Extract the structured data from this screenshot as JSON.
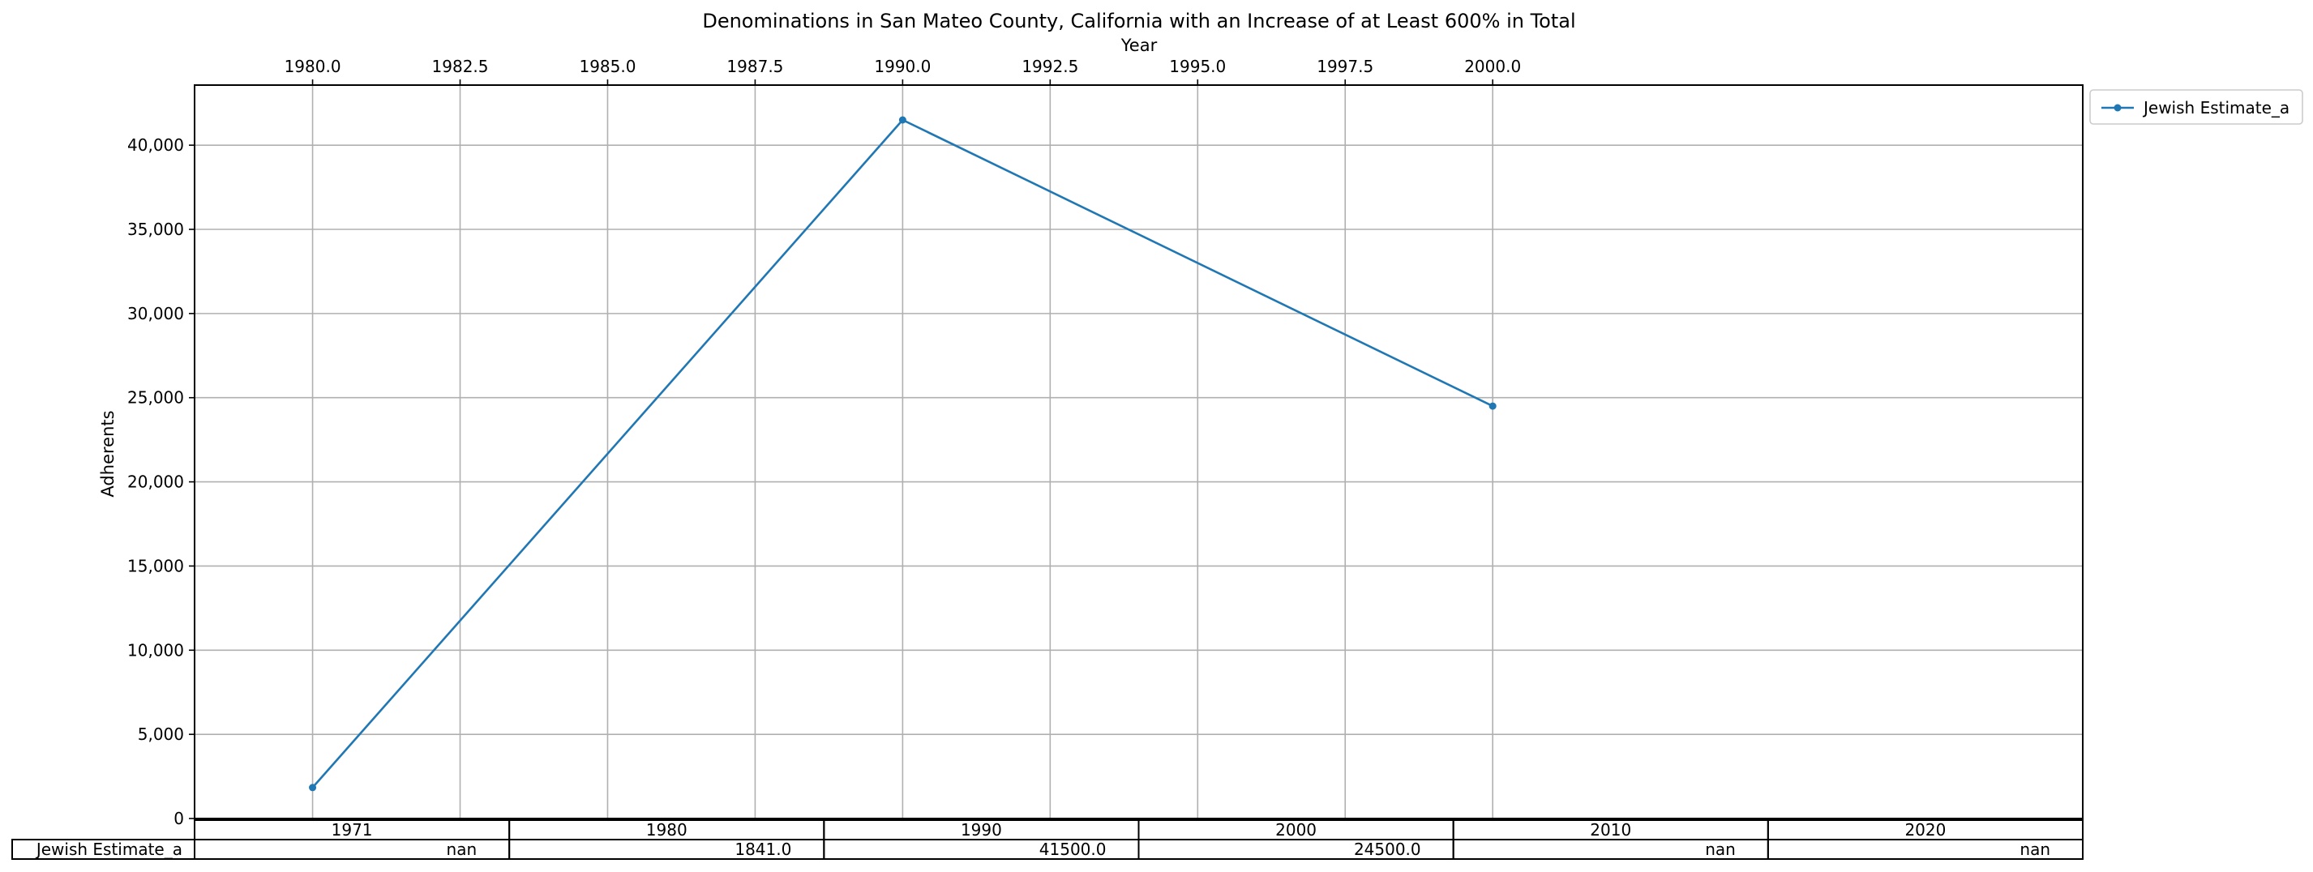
{
  "chart_data": {
    "type": "line",
    "title": "Denominations in San Mateo County, California with an Increase of at Least 600% in Total",
    "xlabel": "Year",
    "ylabel": "Adherents",
    "xlim": [
      1978,
      2010
    ],
    "ylim": [
      0,
      43570
    ],
    "x_ticks": [
      "1980.0",
      "1982.5",
      "1985.0",
      "1987.5",
      "1990.0",
      "1992.5",
      "1995.0",
      "1997.5",
      "2000.0"
    ],
    "y_ticks": [
      "0",
      "5,000",
      "10,000",
      "15,000",
      "20,000",
      "25,000",
      "30,000",
      "35,000",
      "40,000"
    ],
    "grid": true,
    "legend_position": "upper-right-outside",
    "series": [
      {
        "name": "Jewish Estimate_a",
        "color": "#1f77b4",
        "x": [
          1980,
          1990,
          2000
        ],
        "y": [
          1841,
          41500,
          24500
        ]
      }
    ],
    "table": {
      "columns": [
        "1971",
        "1980",
        "1990",
        "2000",
        "2010",
        "2020"
      ],
      "rows": [
        {
          "label": "Jewish Estimate_a",
          "cells": [
            "nan",
            "1841.0",
            "41500.0",
            "24500.0",
            "nan",
            "nan"
          ]
        }
      ]
    }
  }
}
